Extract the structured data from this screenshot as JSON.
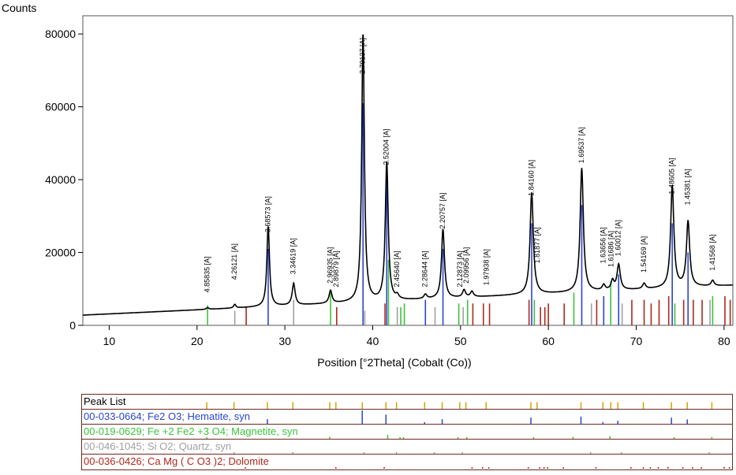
{
  "chart_data": {
    "type": "line",
    "ylabel": "Counts",
    "xlabel": "Position [°2Theta] (Cobalt (Co))",
    "xlim": [
      7,
      81
    ],
    "ylim": [
      0,
      85000
    ],
    "yticks": [
      0,
      20000,
      40000,
      60000,
      80000
    ],
    "xticks": [
      10,
      20,
      30,
      40,
      50,
      60,
      70,
      80
    ],
    "pattern": {
      "baseline_start": 2800,
      "baseline_end": 11000,
      "peaks": [
        {
          "x": 21.2,
          "y": 500,
          "w": 0.15
        },
        {
          "x": 24.3,
          "y": 1000,
          "w": 0.15
        },
        {
          "x": 28.1,
          "y": 22000,
          "w": 0.18
        },
        {
          "x": 31.0,
          "y": 6000,
          "w": 0.2
        },
        {
          "x": 35.2,
          "y": 3500,
          "w": 0.2
        },
        {
          "x": 38.9,
          "y": 74000,
          "w": 0.18
        },
        {
          "x": 41.6,
          "y": 38000,
          "w": 0.2
        },
        {
          "x": 42.8,
          "y": 1000,
          "w": 0.2
        },
        {
          "x": 46.0,
          "y": 1200,
          "w": 0.2
        },
        {
          "x": 48.0,
          "y": 19000,
          "w": 0.2
        },
        {
          "x": 50.4,
          "y": 2000,
          "w": 0.2
        },
        {
          "x": 51.3,
          "y": 1500,
          "w": 0.2
        },
        {
          "x": 58.1,
          "y": 28000,
          "w": 0.22
        },
        {
          "x": 63.8,
          "y": 34000,
          "w": 0.22
        },
        {
          "x": 66.3,
          "y": 1500,
          "w": 0.2
        },
        {
          "x": 67.3,
          "y": 2500,
          "w": 0.2
        },
        {
          "x": 68.0,
          "y": 7000,
          "w": 0.22
        },
        {
          "x": 70.9,
          "y": 1500,
          "w": 0.2
        },
        {
          "x": 74.1,
          "y": 28000,
          "w": 0.22
        },
        {
          "x": 75.9,
          "y": 18000,
          "w": 0.22
        },
        {
          "x": 78.7,
          "y": 1500,
          "w": 0.2
        }
      ]
    },
    "peak_labels": [
      {
        "x": 21.2,
        "y": 9000,
        "text": "4.85835 [A]"
      },
      {
        "x": 24.3,
        "y": 12500,
        "text": "4.26121 [A]"
      },
      {
        "x": 28.1,
        "y": 25500,
        "text": "3.68573 [A]"
      },
      {
        "x": 31.0,
        "y": 14000,
        "text": "3.34619 [A]"
      },
      {
        "x": 35.2,
        "y": 11500,
        "text": "2.96935 [A]"
      },
      {
        "x": 35.9,
        "y": 10500,
        "text": "2.89879 [A]"
      },
      {
        "x": 38.9,
        "y": 69000,
        "text": "2.70137 [A]"
      },
      {
        "x": 41.6,
        "y": 44000,
        "text": "2.52004 [A]"
      },
      {
        "x": 42.8,
        "y": 10500,
        "text": "2.45640 [A]"
      },
      {
        "x": 46.0,
        "y": 10500,
        "text": "2.28644 [A]"
      },
      {
        "x": 48.0,
        "y": 26500,
        "text": "2.20757 [A]"
      },
      {
        "x": 50.0,
        "y": 10500,
        "text": "2.12873 [A]"
      },
      {
        "x": 50.7,
        "y": 11500,
        "text": "2.09956 [A]"
      },
      {
        "x": 53.0,
        "y": 11000,
        "text": "1.97938 [A]"
      },
      {
        "x": 58.1,
        "y": 35500,
        "text": "1.84160 [A]"
      },
      {
        "x": 58.8,
        "y": 17000,
        "text": "1.81877 [A]"
      },
      {
        "x": 63.8,
        "y": 44500,
        "text": "1.69537 [A]"
      },
      {
        "x": 66.3,
        "y": 17000,
        "text": "1.63656 [A]"
      },
      {
        "x": 67.2,
        "y": 16000,
        "text": "1.61686 [A]"
      },
      {
        "x": 68.0,
        "y": 19000,
        "text": "1.60012 [A]"
      },
      {
        "x": 70.9,
        "y": 14500,
        "text": "1.54169 [A]"
      },
      {
        "x": 74.1,
        "y": 36000,
        "text": "1.48605 [A]"
      },
      {
        "x": 75.9,
        "y": 33000,
        "text": "1.45381 [A]"
      },
      {
        "x": 78.7,
        "y": 15000,
        "text": "1.41568 [A]"
      }
    ],
    "reference_colors": {
      "hematite": "#2846d2",
      "magnetite": "#3cc23c",
      "quartz": "#a0a0a0",
      "dolomite": "#b0281c"
    },
    "reference_lines": [
      {
        "x": 21.2,
        "h": 5500,
        "ref": "magnetite"
      },
      {
        "x": 24.3,
        "h": 4000,
        "ref": "quartz"
      },
      {
        "x": 25.6,
        "h": 5000,
        "ref": "dolomite"
      },
      {
        "x": 28.1,
        "h": 21000,
        "ref": "hematite"
      },
      {
        "x": 31.0,
        "h": 7000,
        "ref": "quartz"
      },
      {
        "x": 35.2,
        "h": 9000,
        "ref": "magnetite"
      },
      {
        "x": 35.9,
        "h": 5000,
        "ref": "dolomite"
      },
      {
        "x": 38.9,
        "h": 61000,
        "ref": "hematite"
      },
      {
        "x": 39.1,
        "h": 4000,
        "ref": "quartz"
      },
      {
        "x": 41.4,
        "h": 6000,
        "ref": "dolomite"
      },
      {
        "x": 41.6,
        "h": 42000,
        "ref": "hematite"
      },
      {
        "x": 41.8,
        "h": 18000,
        "ref": "magnetite"
      },
      {
        "x": 42.8,
        "h": 5000,
        "ref": "quartz"
      },
      {
        "x": 43.2,
        "h": 5000,
        "ref": "magnetite"
      },
      {
        "x": 43.6,
        "h": 6000,
        "ref": "magnetite"
      },
      {
        "x": 46.0,
        "h": 7000,
        "ref": "hematite"
      },
      {
        "x": 47.1,
        "h": 5000,
        "ref": "quartz"
      },
      {
        "x": 48.0,
        "h": 21000,
        "ref": "hematite"
      },
      {
        "x": 49.8,
        "h": 6000,
        "ref": "magnetite"
      },
      {
        "x": 50.3,
        "h": 5000,
        "ref": "quartz"
      },
      {
        "x": 50.8,
        "h": 7000,
        "ref": "magnetite"
      },
      {
        "x": 51.4,
        "h": 6000,
        "ref": "dolomite"
      },
      {
        "x": 52.6,
        "h": 6000,
        "ref": "dolomite"
      },
      {
        "x": 53.3,
        "h": 6000,
        "ref": "dolomite"
      },
      {
        "x": 57.8,
        "h": 7000,
        "ref": "dolomite"
      },
      {
        "x": 58.1,
        "h": 28000,
        "ref": "hematite"
      },
      {
        "x": 58.4,
        "h": 7000,
        "ref": "magnetite"
      },
      {
        "x": 59.1,
        "h": 5000,
        "ref": "dolomite"
      },
      {
        "x": 59.6,
        "h": 5000,
        "ref": "dolomite"
      },
      {
        "x": 60.0,
        "h": 6000,
        "ref": "dolomite"
      },
      {
        "x": 61.8,
        "h": 6000,
        "ref": "dolomite"
      },
      {
        "x": 62.9,
        "h": 9000,
        "ref": "magnetite"
      },
      {
        "x": 63.8,
        "h": 33000,
        "ref": "hematite"
      },
      {
        "x": 64.9,
        "h": 6000,
        "ref": "quartz"
      },
      {
        "x": 65.5,
        "h": 7000,
        "ref": "dolomite"
      },
      {
        "x": 66.3,
        "h": 8000,
        "ref": "hematite"
      },
      {
        "x": 67.1,
        "h": 12000,
        "ref": "magnetite"
      },
      {
        "x": 68.0,
        "h": 14000,
        "ref": "hematite"
      },
      {
        "x": 68.4,
        "h": 6000,
        "ref": "quartz"
      },
      {
        "x": 69.5,
        "h": 7000,
        "ref": "dolomite"
      },
      {
        "x": 70.9,
        "h": 7000,
        "ref": "dolomite"
      },
      {
        "x": 71.7,
        "h": 6000,
        "ref": "dolomite"
      },
      {
        "x": 72.6,
        "h": 7000,
        "ref": "dolomite"
      },
      {
        "x": 73.7,
        "h": 8000,
        "ref": "dolomite"
      },
      {
        "x": 74.1,
        "h": 28000,
        "ref": "hematite"
      },
      {
        "x": 74.4,
        "h": 6000,
        "ref": "magnetite"
      },
      {
        "x": 75.4,
        "h": 7000,
        "ref": "dolomite"
      },
      {
        "x": 75.9,
        "h": 20000,
        "ref": "hematite"
      },
      {
        "x": 76.5,
        "h": 7000,
        "ref": "dolomite"
      },
      {
        "x": 77.5,
        "h": 7000,
        "ref": "dolomite"
      },
      {
        "x": 78.4,
        "h": 7000,
        "ref": "quartz"
      },
      {
        "x": 78.7,
        "h": 8000,
        "ref": "magnetite"
      },
      {
        "x": 80.1,
        "h": 8000,
        "ref": "dolomite"
      },
      {
        "x": 80.7,
        "h": 7000,
        "ref": "dolomite"
      }
    ],
    "strips": [
      {
        "label": "Peak List",
        "color": "#000000",
        "ref": "peaks"
      },
      {
        "label": "00-033-0664; Fe2 O3; Hematite, syn",
        "color": "#2846d2",
        "ref": "hematite"
      },
      {
        "label": "00-019-0629; Fe +2 Fe2 +3 O4; Magnetite, syn",
        "color": "#3cc23c",
        "ref": "magnetite"
      },
      {
        "label": "00-046-1045; Si O2; Quartz, syn",
        "color": "#a0a0a0",
        "ref": "quartz"
      },
      {
        "label": "00-036-0426; Ca Mg ( C O3 )2; Dolomite",
        "color": "#b0281c",
        "ref": "dolomite"
      }
    ]
  }
}
